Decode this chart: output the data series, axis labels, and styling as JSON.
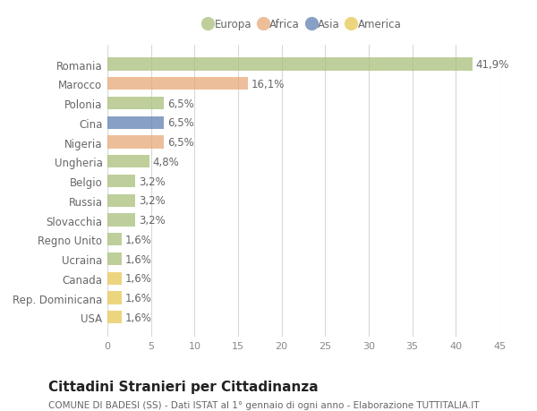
{
  "countries": [
    "Romania",
    "Marocco",
    "Polonia",
    "Cina",
    "Nigeria",
    "Ungheria",
    "Belgio",
    "Russia",
    "Slovacchia",
    "Regno Unito",
    "Ucraina",
    "Canada",
    "Rep. Dominicana",
    "USA"
  ],
  "values": [
    41.9,
    16.1,
    6.5,
    6.5,
    6.5,
    4.8,
    3.2,
    3.2,
    3.2,
    1.6,
    1.6,
    1.6,
    1.6,
    1.6
  ],
  "labels": [
    "41,9%",
    "16,1%",
    "6,5%",
    "6,5%",
    "6,5%",
    "4,8%",
    "3,2%",
    "3,2%",
    "3,2%",
    "1,6%",
    "1,6%",
    "1,6%",
    "1,6%",
    "1,6%"
  ],
  "colors": [
    "#a8c07a",
    "#e8a878",
    "#a8c07a",
    "#6080b0",
    "#e8a878",
    "#a8c07a",
    "#a8c07a",
    "#a8c07a",
    "#a8c07a",
    "#a8c07a",
    "#a8c07a",
    "#e8c855",
    "#e8c855",
    "#e8c855"
  ],
  "continent_labels": [
    "Europa",
    "Africa",
    "Asia",
    "America"
  ],
  "continent_colors": [
    "#a8c07a",
    "#e8a878",
    "#6080b0",
    "#e8c855"
  ],
  "xlim": [
    0,
    45
  ],
  "xticks": [
    0,
    5,
    10,
    15,
    20,
    25,
    30,
    35,
    40,
    45
  ],
  "title": "Cittadini Stranieri per Cittadinanza",
  "subtitle": "COMUNE DI BADESI (SS) - Dati ISTAT al 1° gennaio di ogni anno - Elaborazione TUTTITALIA.IT",
  "bg_color": "#ffffff",
  "grid_color": "#d8d8d8",
  "bar_height": 0.65,
  "label_fontsize": 8.5,
  "title_fontsize": 11,
  "subtitle_fontsize": 7.5,
  "tick_fontsize": 8,
  "country_fontsize": 8.5,
  "bar_alpha": 0.75
}
